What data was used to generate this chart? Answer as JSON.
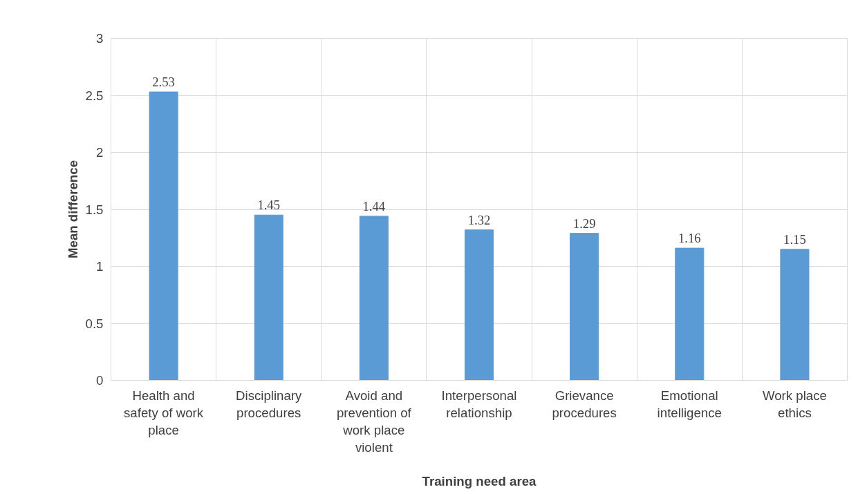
{
  "chart_data": {
    "type": "bar",
    "xlabel": "Training need area",
    "ylabel": "Mean difference",
    "categories": [
      "Health and safety of work place",
      "Disciplinary procedures",
      "Avoid and prevention of work place violent",
      "Interpersonal relationship",
      "Grievance procedures",
      "Emotional intelligence",
      "Work place ethics"
    ],
    "values": [
      2.53,
      1.45,
      1.44,
      1.32,
      1.29,
      1.16,
      1.15
    ],
    "color": "#5b9bd5",
    "ylim": [
      0,
      3
    ],
    "yticks": [
      0,
      0.5,
      1,
      1.5,
      2,
      2.5,
      3
    ],
    "grid": true,
    "data_labels": true
  }
}
